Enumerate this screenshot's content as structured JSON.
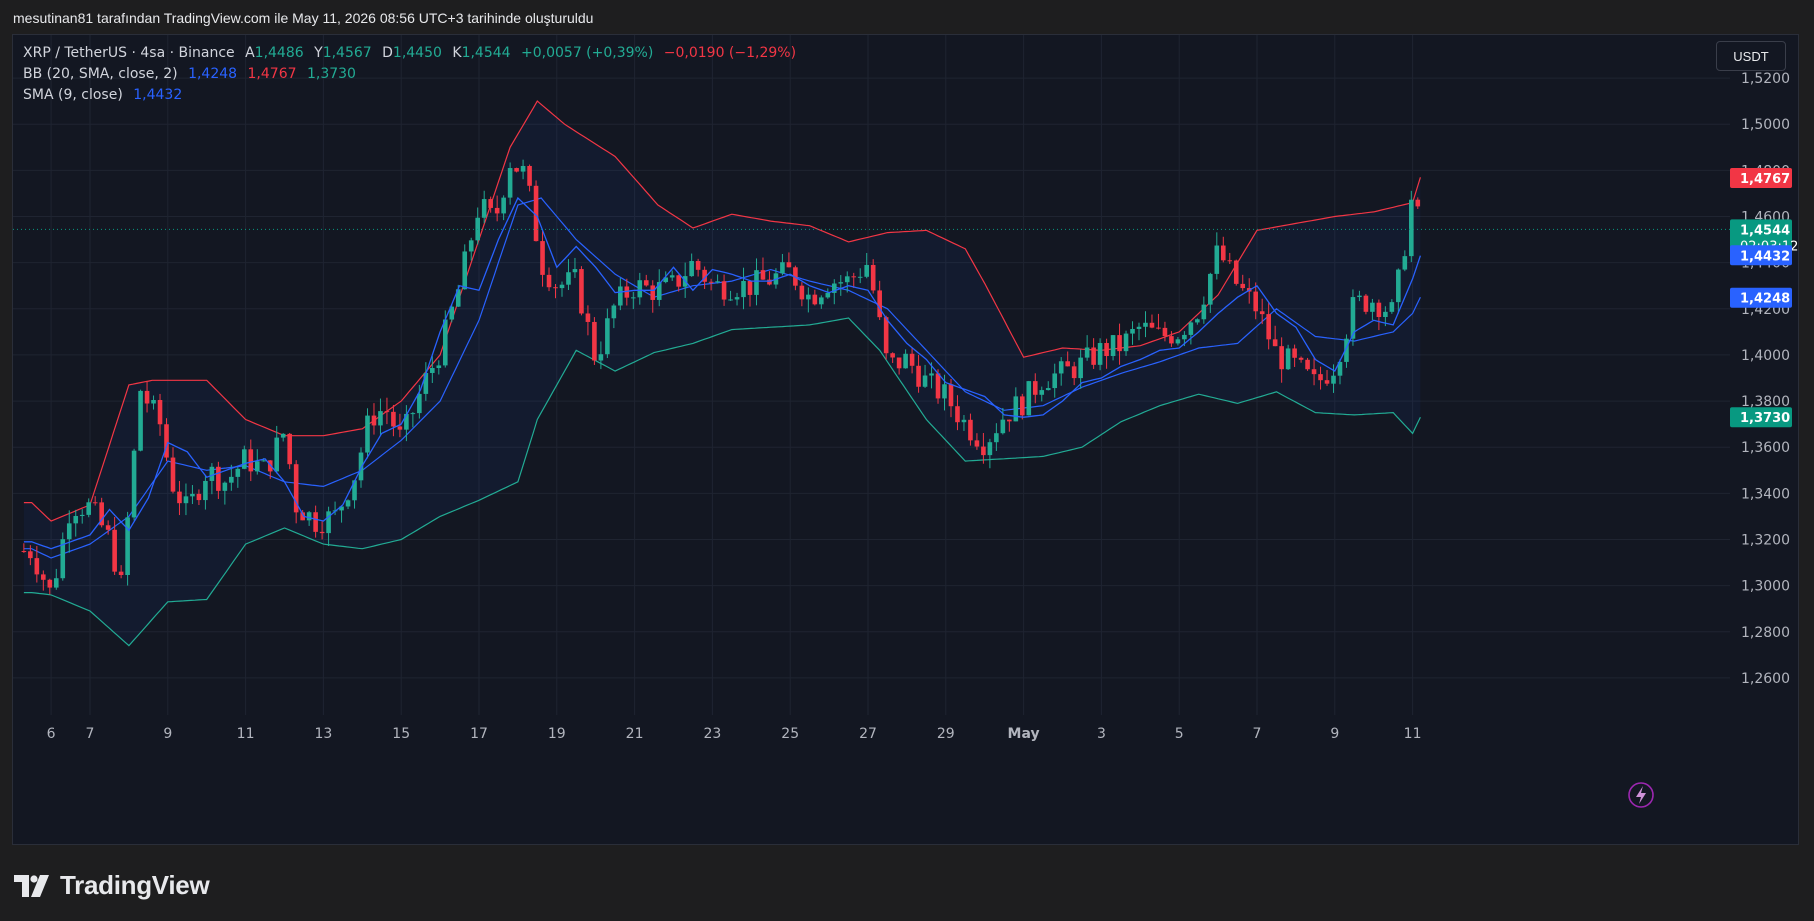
{
  "caption": "mesutinan81 tarafından TradingView.com ile May 11, 2026 08:56 UTC+3 tarihinde oluşturuldu",
  "legend": {
    "symbol": "XRP / TetherUS · 4sa · Binance",
    "o_label": "A",
    "o_value": "1,4486",
    "h_label": "Y",
    "h_value": "1,4567",
    "l_label": "D",
    "l_value": "1,4450",
    "c_label": "K",
    "c_value": "1,4544",
    "change": "+0,0057 (+0,39%)",
    "change2": "−0,0190 (−1,29%)",
    "bb_label": "BB (20, SMA, close, 2)",
    "bb_mid": "1,4248",
    "bb_upper": "1,4767",
    "bb_lower": "1,3730",
    "sma_label": "SMA (9, close)",
    "sma_value": "1,4432"
  },
  "currency_button": "USDT",
  "brand": "TradingView",
  "colors": {
    "up": "#22ab94",
    "down": "#f23645",
    "sma": "#2962ff",
    "bb_upper": "#f23645",
    "bb_lower": "#22ab94",
    "bb_basis": "#2962ff",
    "background": "#131722"
  },
  "chart_data": {
    "type": "candlestick",
    "symbol": "XRP / TetherUS",
    "interval": "4sa",
    "exchange": "Binance",
    "ylim": [
      1.25,
      1.53
    ],
    "y_ticks": [
      "1,5200",
      "1,5000",
      "1,4800",
      "1,4600",
      "1,4400",
      "1,4200",
      "1,4000",
      "1,3800",
      "1,3600",
      "1,3400",
      "1,3200",
      "1,3000",
      "1,2800",
      "1,2600"
    ],
    "y_tick_values": [
      1.52,
      1.5,
      1.48,
      1.46,
      1.44,
      1.42,
      1.4,
      1.38,
      1.36,
      1.34,
      1.32,
      1.3,
      1.28,
      1.26
    ],
    "x_ticks": [
      "6",
      "7",
      "9",
      "11",
      "13",
      "15",
      "17",
      "19",
      "21",
      "23",
      "25",
      "27",
      "29",
      "May",
      "3",
      "5",
      "7",
      "9",
      "11"
    ],
    "x_tick_days": [
      -1,
      0,
      2,
      4,
      6,
      8,
      10,
      12,
      14,
      16,
      18,
      20,
      22,
      24,
      26,
      28,
      30,
      32,
      34
    ],
    "grid": true,
    "price_labels": [
      {
        "text": "1,4767",
        "value": 1.4767,
        "color": "#f23645"
      },
      {
        "text": "1,4544",
        "sub": "02:03:12",
        "value": 1.4544,
        "color": "#089981"
      },
      {
        "text": "1,4432",
        "value": 1.4432,
        "color": "#2962ff"
      },
      {
        "text": "1,4248",
        "value": 1.4248,
        "color": "#2962ff"
      },
      {
        "text": "1,3730",
        "value": 1.373,
        "color": "#089981"
      }
    ],
    "last_price": 1.4544,
    "bb_upper_anchors": [
      [
        -1.5,
        1.336
      ],
      [
        -1,
        1.328
      ],
      [
        0,
        1.335
      ],
      [
        1,
        1.387
      ],
      [
        1.6,
        1.389
      ],
      [
        3,
        1.389
      ],
      [
        4,
        1.372
      ],
      [
        5,
        1.365
      ],
      [
        6,
        1.365
      ],
      [
        7,
        1.368
      ],
      [
        8,
        1.38
      ],
      [
        9,
        1.4
      ],
      [
        10,
        1.45
      ],
      [
        10.8,
        1.49
      ],
      [
        11.5,
        1.51
      ],
      [
        12.2,
        1.5
      ],
      [
        13.5,
        1.486
      ],
      [
        14.6,
        1.465
      ],
      [
        15.5,
        1.455
      ],
      [
        16.5,
        1.461
      ],
      [
        17.5,
        1.458
      ],
      [
        18.5,
        1.456
      ],
      [
        19.5,
        1.449
      ],
      [
        20.5,
        1.453
      ],
      [
        21.5,
        1.454
      ],
      [
        22.5,
        1.446
      ],
      [
        23,
        1.431
      ],
      [
        24,
        1.399
      ],
      [
        25,
        1.403
      ],
      [
        26,
        1.402
      ],
      [
        27,
        1.404
      ],
      [
        28,
        1.41
      ],
      [
        29,
        1.426
      ],
      [
        30,
        1.454
      ],
      [
        31,
        1.457
      ],
      [
        32,
        1.46
      ],
      [
        33,
        1.462
      ],
      [
        34,
        1.466
      ],
      [
        34.2,
        1.477
      ]
    ],
    "bb_basis_anchors": [
      [
        -1.5,
        1.316
      ],
      [
        -1,
        1.312
      ],
      [
        0,
        1.318
      ],
      [
        1,
        1.33
      ],
      [
        2,
        1.354
      ],
      [
        3,
        1.35
      ],
      [
        4,
        1.352
      ],
      [
        5,
        1.345
      ],
      [
        6,
        1.343
      ],
      [
        7,
        1.35
      ],
      [
        8,
        1.363
      ],
      [
        9,
        1.38
      ],
      [
        10,
        1.415
      ],
      [
        11,
        1.465
      ],
      [
        11.6,
        1.468
      ],
      [
        12.5,
        1.45
      ],
      [
        13.5,
        1.435
      ],
      [
        14.5,
        1.425
      ],
      [
        15.5,
        1.43
      ],
      [
        16.5,
        1.432
      ],
      [
        17.5,
        1.437
      ],
      [
        18.5,
        1.432
      ],
      [
        19.5,
        1.428
      ],
      [
        20.5,
        1.42
      ],
      [
        21.5,
        1.402
      ],
      [
        22.5,
        1.384
      ],
      [
        23.5,
        1.376
      ],
      [
        24.5,
        1.378
      ],
      [
        25.5,
        1.386
      ],
      [
        26.5,
        1.392
      ],
      [
        27.5,
        1.397
      ],
      [
        28.5,
        1.403
      ],
      [
        29.5,
        1.405
      ],
      [
        30.5,
        1.42
      ],
      [
        31.5,
        1.408
      ],
      [
        32.5,
        1.406
      ],
      [
        33.5,
        1.41
      ],
      [
        34,
        1.418
      ],
      [
        34.2,
        1.425
      ]
    ],
    "bb_lower_anchors": [
      [
        -1.5,
        1.297
      ],
      [
        -1,
        1.296
      ],
      [
        0,
        1.289
      ],
      [
        1,
        1.274
      ],
      [
        2,
        1.293
      ],
      [
        3,
        1.294
      ],
      [
        4,
        1.318
      ],
      [
        5,
        1.325
      ],
      [
        6,
        1.318
      ],
      [
        7,
        1.316
      ],
      [
        8,
        1.32
      ],
      [
        9,
        1.33
      ],
      [
        10,
        1.337
      ],
      [
        11,
        1.345
      ],
      [
        11.5,
        1.372
      ],
      [
        12.5,
        1.402
      ],
      [
        13.5,
        1.393
      ],
      [
        14.5,
        1.401
      ],
      [
        15.5,
        1.405
      ],
      [
        16.5,
        1.411
      ],
      [
        17.5,
        1.412
      ],
      [
        18.5,
        1.413
      ],
      [
        19.5,
        1.416
      ],
      [
        20.3,
        1.402
      ],
      [
        21.5,
        1.372
      ],
      [
        22.5,
        1.354
      ],
      [
        23.5,
        1.355
      ],
      [
        24.5,
        1.356
      ],
      [
        25.5,
        1.36
      ],
      [
        26.5,
        1.371
      ],
      [
        27.5,
        1.378
      ],
      [
        28.5,
        1.383
      ],
      [
        29.5,
        1.379
      ],
      [
        30.5,
        1.384
      ],
      [
        31.5,
        1.375
      ],
      [
        32.5,
        1.374
      ],
      [
        33.5,
        1.375
      ],
      [
        34,
        1.366
      ],
      [
        34.2,
        1.373
      ]
    ],
    "sma_anchors": [
      [
        -1.5,
        1.319
      ],
      [
        -1,
        1.316
      ],
      [
        0,
        1.322
      ],
      [
        0.5,
        1.333
      ],
      [
        1,
        1.324
      ],
      [
        1.5,
        1.338
      ],
      [
        2,
        1.362
      ],
      [
        2.5,
        1.358
      ],
      [
        3,
        1.347
      ],
      [
        3.5,
        1.35
      ],
      [
        4,
        1.353
      ],
      [
        4.5,
        1.355
      ],
      [
        5,
        1.345
      ],
      [
        5.5,
        1.33
      ],
      [
        6,
        1.328
      ],
      [
        6.5,
        1.335
      ],
      [
        7,
        1.352
      ],
      [
        7.5,
        1.366
      ],
      [
        8,
        1.37
      ],
      [
        8.5,
        1.385
      ],
      [
        9,
        1.41
      ],
      [
        9.5,
        1.43
      ],
      [
        10,
        1.428
      ],
      [
        10.5,
        1.45
      ],
      [
        11,
        1.468
      ],
      [
        11.5,
        1.46
      ],
      [
        12,
        1.438
      ],
      [
        12.5,
        1.447
      ],
      [
        13,
        1.438
      ],
      [
        13.5,
        1.427
      ],
      [
        14,
        1.428
      ],
      [
        14.5,
        1.428
      ],
      [
        15,
        1.438
      ],
      [
        15.5,
        1.428
      ],
      [
        16,
        1.437
      ],
      [
        16.5,
        1.435
      ],
      [
        17,
        1.432
      ],
      [
        17.5,
        1.432
      ],
      [
        18,
        1.435
      ],
      [
        18.5,
        1.43
      ],
      [
        19,
        1.427
      ],
      [
        19.5,
        1.43
      ],
      [
        20,
        1.428
      ],
      [
        20.5,
        1.415
      ],
      [
        21,
        1.405
      ],
      [
        21.5,
        1.398
      ],
      [
        22,
        1.388
      ],
      [
        22.5,
        1.385
      ],
      [
        23,
        1.382
      ],
      [
        23.5,
        1.374
      ],
      [
        24,
        1.373
      ],
      [
        24.5,
        1.374
      ],
      [
        25,
        1.38
      ],
      [
        25.5,
        1.388
      ],
      [
        26,
        1.39
      ],
      [
        26.5,
        1.395
      ],
      [
        27,
        1.398
      ],
      [
        27.5,
        1.402
      ],
      [
        28,
        1.403
      ],
      [
        28.5,
        1.41
      ],
      [
        29,
        1.418
      ],
      [
        29.5,
        1.425
      ],
      [
        30,
        1.43
      ],
      [
        30.5,
        1.418
      ],
      [
        31,
        1.412
      ],
      [
        31.5,
        1.398
      ],
      [
        32,
        1.393
      ],
      [
        32.5,
        1.41
      ],
      [
        33,
        1.415
      ],
      [
        33.5,
        1.413
      ],
      [
        34,
        1.433
      ],
      [
        34.2,
        1.443
      ]
    ],
    "candle_path": [
      [
        -1.5,
        1.315
      ],
      [
        -1,
        1.296
      ],
      [
        -0.5,
        1.335
      ],
      [
        0,
        1.334
      ],
      [
        0.5,
        1.32
      ],
      [
        0.8,
        1.3
      ],
      [
        1.3,
        1.385
      ],
      [
        1.8,
        1.37
      ],
      [
        2.1,
        1.345
      ],
      [
        2.5,
        1.332
      ],
      [
        3,
        1.35
      ],
      [
        3.5,
        1.345
      ],
      [
        4,
        1.355
      ],
      [
        4.5,
        1.35
      ],
      [
        5,
        1.367
      ],
      [
        5.3,
        1.335
      ],
      [
        5.8,
        1.328
      ],
      [
        6.3,
        1.33
      ],
      [
        6.8,
        1.348
      ],
      [
        7.2,
        1.373
      ],
      [
        7.6,
        1.377
      ],
      [
        8,
        1.363
      ],
      [
        8.6,
        1.388
      ],
      [
        9,
        1.402
      ],
      [
        9.5,
        1.43
      ],
      [
        10,
        1.465
      ],
      [
        10.4,
        1.458
      ],
      [
        10.8,
        1.484
      ],
      [
        11.2,
        1.478
      ],
      [
        11.6,
        1.44
      ],
      [
        12,
        1.43
      ],
      [
        12.5,
        1.432
      ],
      [
        13,
        1.398
      ],
      [
        13.5,
        1.422
      ],
      [
        14,
        1.43
      ],
      [
        14.5,
        1.428
      ],
      [
        15,
        1.43
      ],
      [
        15.5,
        1.44
      ],
      [
        16,
        1.43
      ],
      [
        16.5,
        1.43
      ],
      [
        17,
        1.43
      ],
      [
        17.5,
        1.433
      ],
      [
        18,
        1.436
      ],
      [
        18.5,
        1.425
      ],
      [
        19,
        1.432
      ],
      [
        19.5,
        1.432
      ],
      [
        20,
        1.44
      ],
      [
        20.5,
        1.395
      ],
      [
        21,
        1.398
      ],
      [
        21.5,
        1.388
      ],
      [
        22,
        1.382
      ],
      [
        22.5,
        1.37
      ],
      [
        23,
        1.362
      ],
      [
        23.5,
        1.374
      ],
      [
        24,
        1.38
      ],
      [
        24.5,
        1.39
      ],
      [
        25,
        1.392
      ],
      [
        25.5,
        1.396
      ],
      [
        26,
        1.402
      ],
      [
        26.5,
        1.404
      ],
      [
        27,
        1.412
      ],
      [
        27.5,
        1.408
      ],
      [
        28,
        1.41
      ],
      [
        28.5,
        1.42
      ],
      [
        29,
        1.445
      ],
      [
        29.5,
        1.43
      ],
      [
        30,
        1.42
      ],
      [
        30.5,
        1.4
      ],
      [
        31,
        1.395
      ],
      [
        31.5,
        1.387
      ],
      [
        32,
        1.396
      ],
      [
        32.5,
        1.422
      ],
      [
        33,
        1.424
      ],
      [
        33.5,
        1.418
      ],
      [
        33.8,
        1.448
      ],
      [
        34,
        1.47
      ],
      [
        34.2,
        1.454
      ]
    ]
  }
}
